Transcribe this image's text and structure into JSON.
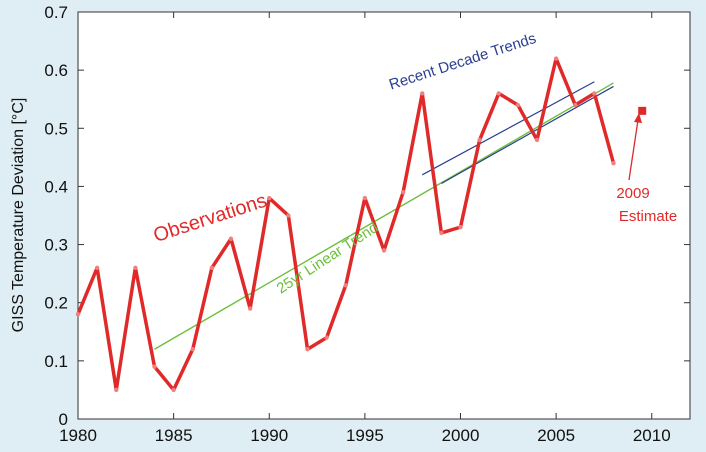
{
  "chart_data": {
    "type": "line",
    "title": "",
    "xlabel": "",
    "ylabel": "GISS Temperature Deviation [°C]",
    "xlim": [
      1980,
      2012
    ],
    "ylim": [
      0,
      0.7
    ],
    "xticks": [
      1980,
      1985,
      1990,
      1995,
      2000,
      2005,
      2010
    ],
    "yticks": [
      0,
      0.1,
      0.2,
      0.3,
      0.4,
      0.5,
      0.6,
      0.7
    ],
    "grid": false,
    "colors": {
      "observations": "#e02a2a",
      "linear_trend": "#6cbf3c",
      "decade_trend": "#2a3f8f",
      "background": "#dfeef4",
      "plot_area": "#ffffff"
    },
    "series": [
      {
        "name": "Observations",
        "x": [
          1980,
          1981,
          1982,
          1983,
          1984,
          1985,
          1986,
          1987,
          1988,
          1989,
          1990,
          1991,
          1992,
          1993,
          1994,
          1995,
          1996,
          1997,
          1998,
          1999,
          2000,
          2001,
          2002,
          2003,
          2004,
          2005,
          2006,
          2007,
          2008
        ],
        "values": [
          0.18,
          0.26,
          0.05,
          0.26,
          0.09,
          0.05,
          0.12,
          0.26,
          0.31,
          0.19,
          0.38,
          0.35,
          0.12,
          0.14,
          0.23,
          0.38,
          0.29,
          0.39,
          0.56,
          0.32,
          0.33,
          0.48,
          0.56,
          0.54,
          0.48,
          0.62,
          0.54,
          0.56,
          0.44
        ]
      },
      {
        "name": "25yr Linear Trend",
        "x": [
          1984,
          2008
        ],
        "values": [
          0.12,
          0.578
        ]
      },
      {
        "name": "Recent Decade Trends",
        "x": [
          1998,
          2007
        ],
        "values": [
          0.42,
          0.58
        ]
      },
      {
        "name": "Recent Decade Trends",
        "x": [
          1999,
          2008
        ],
        "values": [
          0.405,
          0.572
        ]
      },
      {
        "name": "2009 Estimate",
        "x": [
          2009.5
        ],
        "values": [
          0.53
        ]
      }
    ],
    "annotations": {
      "observations": "Observations",
      "linear_trend": "25yr Linear Trend",
      "decade_trends": "Recent Decade Trends",
      "estimate_line1": "2009",
      "estimate_line2": "Estimate"
    }
  }
}
